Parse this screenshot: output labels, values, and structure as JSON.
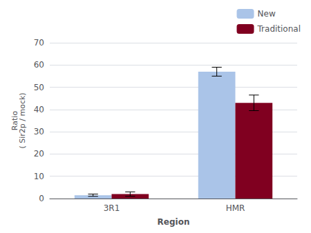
{
  "chart_data": {
    "type": "bar",
    "categories": [
      "3R1",
      "HMR"
    ],
    "series": [
      {
        "name": "New",
        "color": "#aac4e8",
        "values": [
          1.5,
          57.0
        ],
        "errors": [
          0.5,
          2.0
        ]
      },
      {
        "name": "Traditional",
        "color": "#800020",
        "values": [
          2.0,
          43.0
        ],
        "errors": [
          1.0,
          3.5
        ]
      }
    ],
    "xlabel": "Region",
    "ylabel": "Ratio\n( Sir2p / mock)",
    "ylim": [
      0,
      70
    ],
    "yticks": [
      0,
      10,
      20,
      30,
      40,
      50,
      60,
      70
    ],
    "grid": true,
    "legend": "upper right"
  }
}
